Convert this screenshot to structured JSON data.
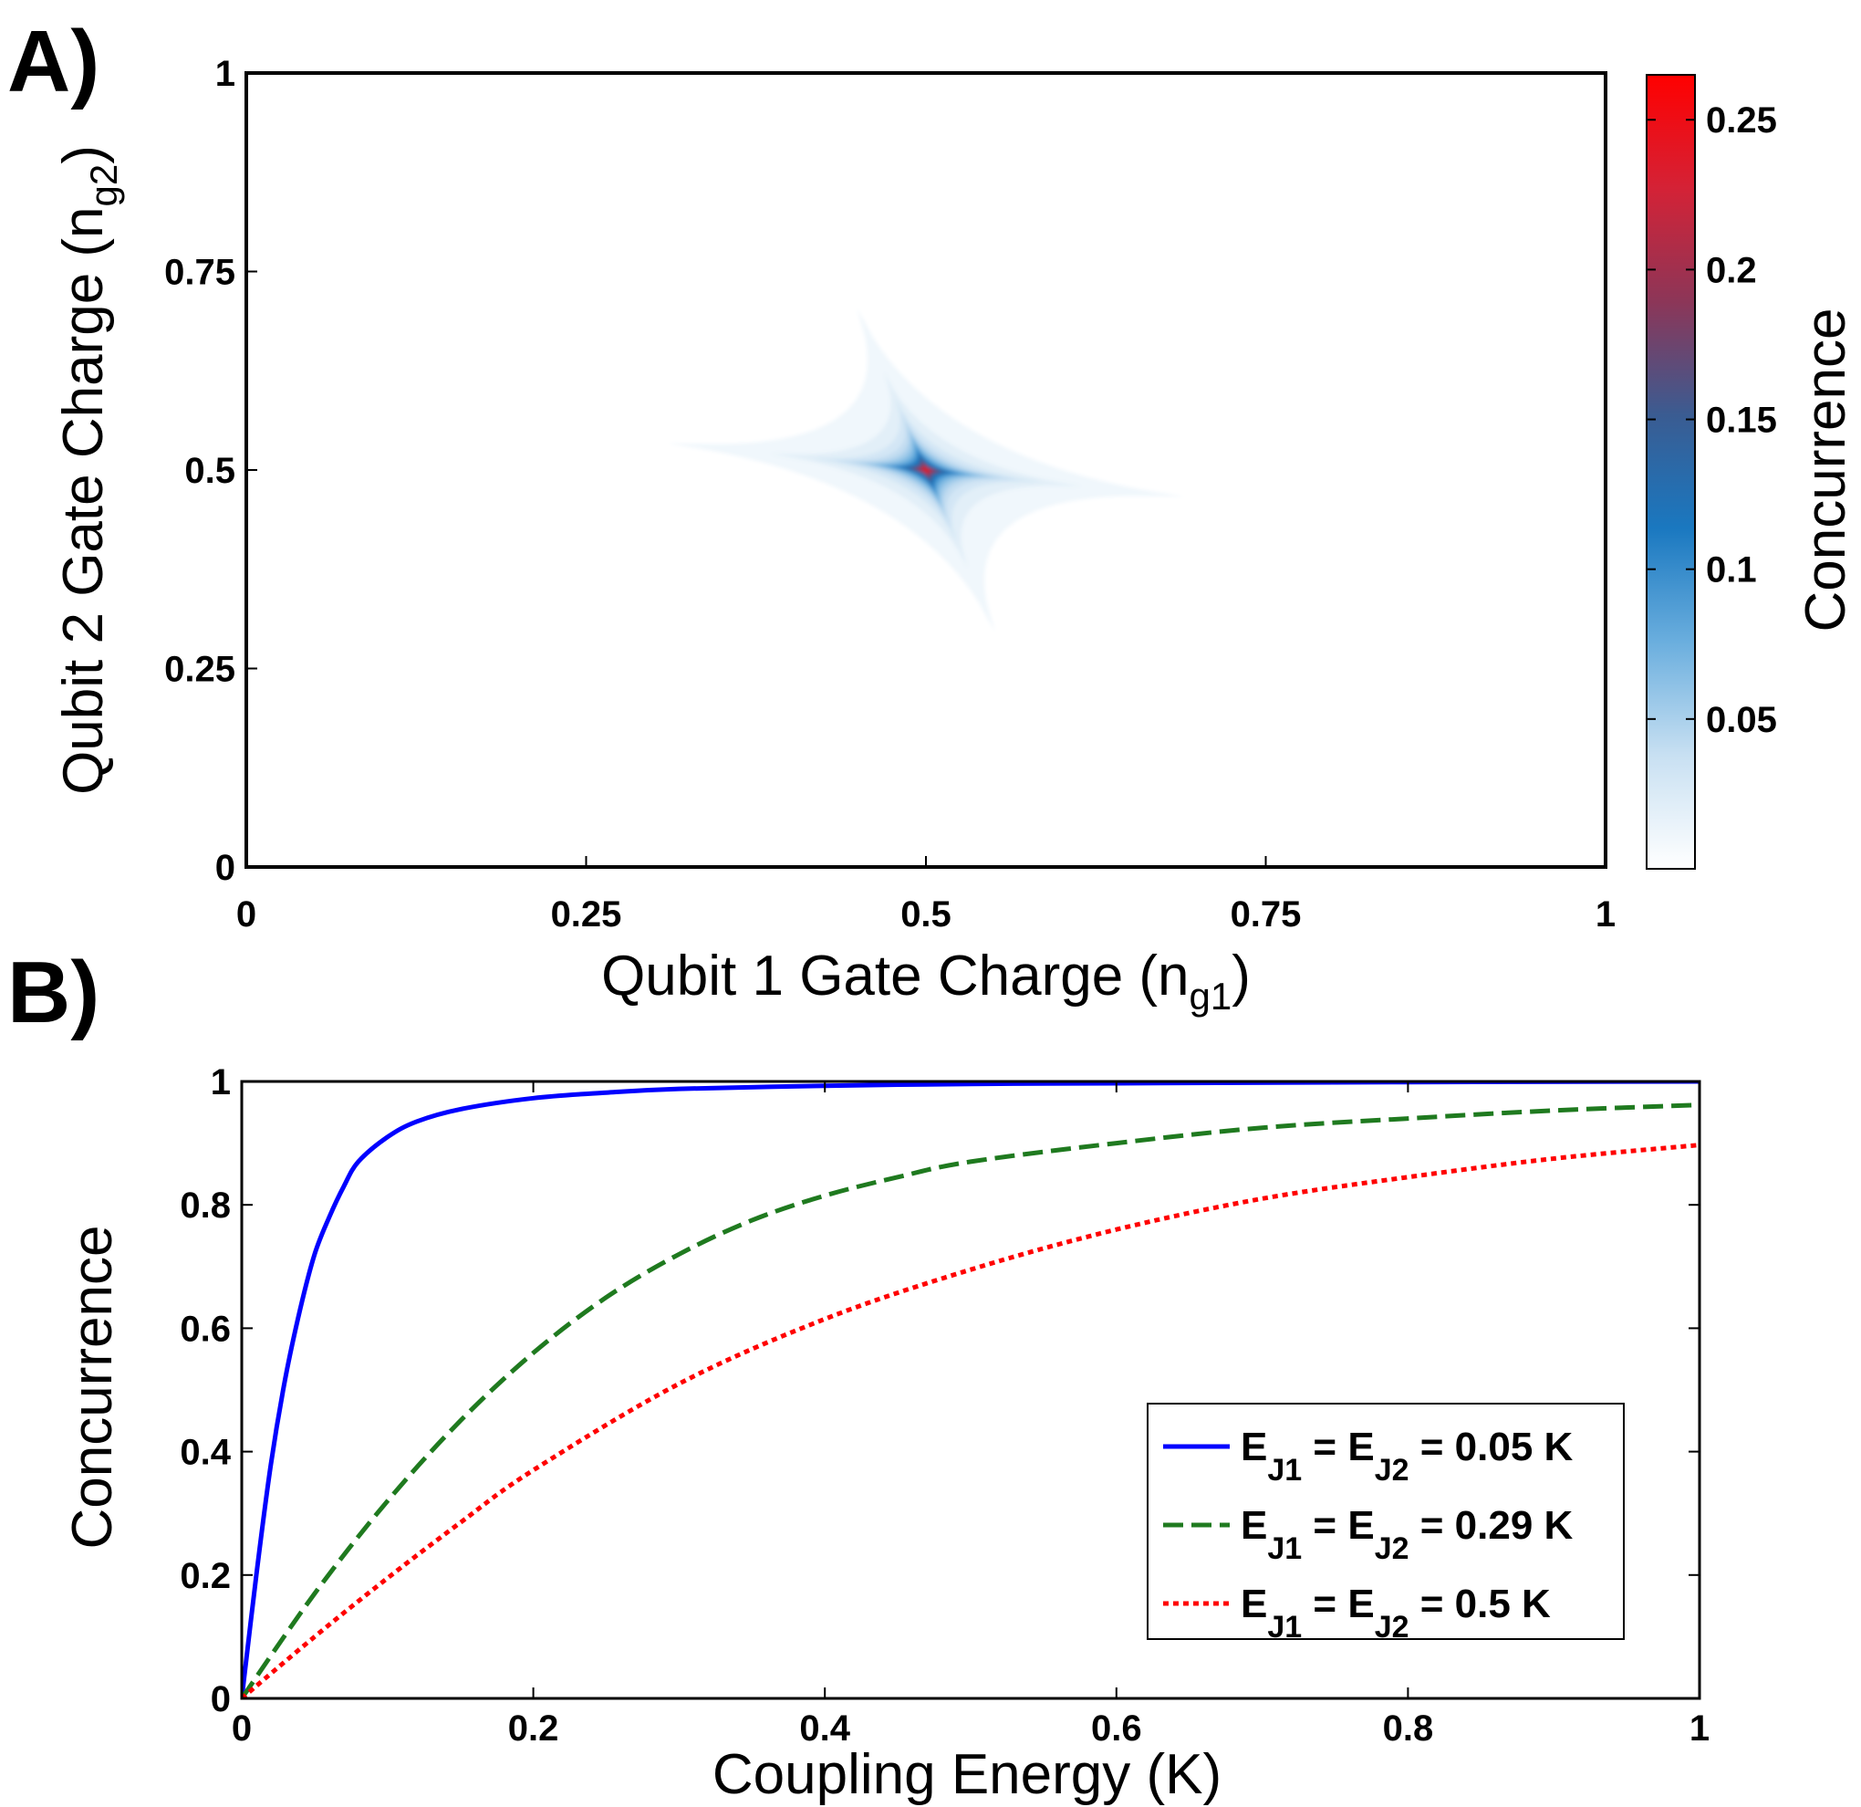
{
  "chart_data": [
    {
      "type": "heatmap",
      "panel_label": "A)",
      "xlabel": {
        "main": "Qubit 1 Gate Charge (n",
        "sub": "g1",
        "close": ")"
      },
      "ylabel": {
        "main": "Qubit 2 Gate Charge (n",
        "sub": "g2",
        "close": ")"
      },
      "xlim": [
        0,
        1
      ],
      "ylim": [
        0,
        1
      ],
      "xticks": [
        0,
        0.25,
        0.5,
        0.75,
        1
      ],
      "yticks": [
        0,
        0.25,
        0.5,
        0.75,
        1
      ],
      "xtick_labels": [
        "0",
        "0.25",
        "0.5",
        "0.75",
        "1"
      ],
      "ytick_labels": [
        "0",
        "0.25",
        "0.5",
        "0.75",
        "1"
      ],
      "peak": {
        "x": 0.5,
        "y": 0.5,
        "value": 0.265
      },
      "levels": [
        0.01,
        0.02,
        0.03,
        0.04,
        0.05,
        0.06,
        0.07,
        0.08,
        0.09,
        0.1,
        0.11,
        0.12,
        0.14,
        0.16,
        0.18,
        0.2,
        0.22,
        0.24
      ],
      "colorbar": {
        "label": "Concurrence",
        "min": 0,
        "max": 0.265,
        "ticks": [
          0.05,
          0.1,
          0.15,
          0.2,
          0.25
        ],
        "tick_labels": [
          "0.05",
          "0.1",
          "0.15",
          "0.2",
          "0.25"
        ],
        "colors": [
          "#ffffff",
          "#c8e0f2",
          "#6aaede",
          "#1a78c0",
          "#3a5c92",
          "#8c3658",
          "#d42236",
          "#ff0000"
        ]
      }
    },
    {
      "type": "line",
      "panel_label": "B)",
      "xlabel": "Coupling Energy (K)",
      "ylabel": "Concurrence",
      "xlim": [
        0,
        1
      ],
      "ylim": [
        0,
        1
      ],
      "xticks": [
        0,
        0.2,
        0.4,
        0.6,
        0.8,
        1
      ],
      "yticks": [
        0,
        0.2,
        0.4,
        0.6,
        0.8,
        1
      ],
      "xtick_labels": [
        "0",
        "0.2",
        "0.4",
        "0.6",
        "0.8",
        "1"
      ],
      "ytick_labels": [
        "0",
        "0.2",
        "0.4",
        "0.6",
        "0.8",
        "1"
      ],
      "legend_position": "bottom-right",
      "series": [
        {
          "name": "E_J1 = E_J2 = 0.05 K",
          "label_parts": [
            "E",
            "J1",
            " = E",
            "J2",
            " = 0.05 K"
          ],
          "color": "#0000ff",
          "style": "solid",
          "x": [
            0,
            0.01,
            0.02,
            0.03,
            0.04,
            0.05,
            0.06,
            0.07,
            0.08,
            0.1,
            0.12,
            0.15,
            0.2,
            0.25,
            0.3,
            0.4,
            0.5,
            0.6,
            0.8,
            1.0
          ],
          "y": [
            0,
            0.2,
            0.38,
            0.52,
            0.63,
            0.72,
            0.78,
            0.83,
            0.87,
            0.91,
            0.935,
            0.955,
            0.973,
            0.982,
            0.988,
            0.993,
            0.996,
            0.997,
            0.999,
            1.0
          ]
        },
        {
          "name": "E_J1 = E_J2 = 0.29 K",
          "label_parts": [
            "E",
            "J1",
            " = E",
            "J2",
            " = 0.29 K"
          ],
          "color": "#1f7a1f",
          "style": "dashed",
          "x": [
            0,
            0.05,
            0.1,
            0.15,
            0.2,
            0.25,
            0.3,
            0.35,
            0.4,
            0.45,
            0.5,
            0.6,
            0.7,
            0.8,
            0.9,
            1.0
          ],
          "y": [
            0,
            0.17,
            0.32,
            0.45,
            0.56,
            0.65,
            0.72,
            0.775,
            0.815,
            0.845,
            0.87,
            0.9,
            0.925,
            0.94,
            0.953,
            0.962
          ]
        },
        {
          "name": "E_J1 = E_J2 = 0.5 K",
          "label_parts": [
            "E",
            "J1",
            " = E",
            "J2",
            " = 0.5 K"
          ],
          "color": "#ff0000",
          "style": "dotted",
          "x": [
            0,
            0.05,
            0.1,
            0.15,
            0.2,
            0.3,
            0.4,
            0.5,
            0.6,
            0.7,
            0.8,
            0.9,
            1.0
          ],
          "y": [
            0,
            0.1,
            0.195,
            0.285,
            0.37,
            0.51,
            0.615,
            0.695,
            0.76,
            0.81,
            0.845,
            0.875,
            0.897
          ]
        }
      ]
    }
  ]
}
